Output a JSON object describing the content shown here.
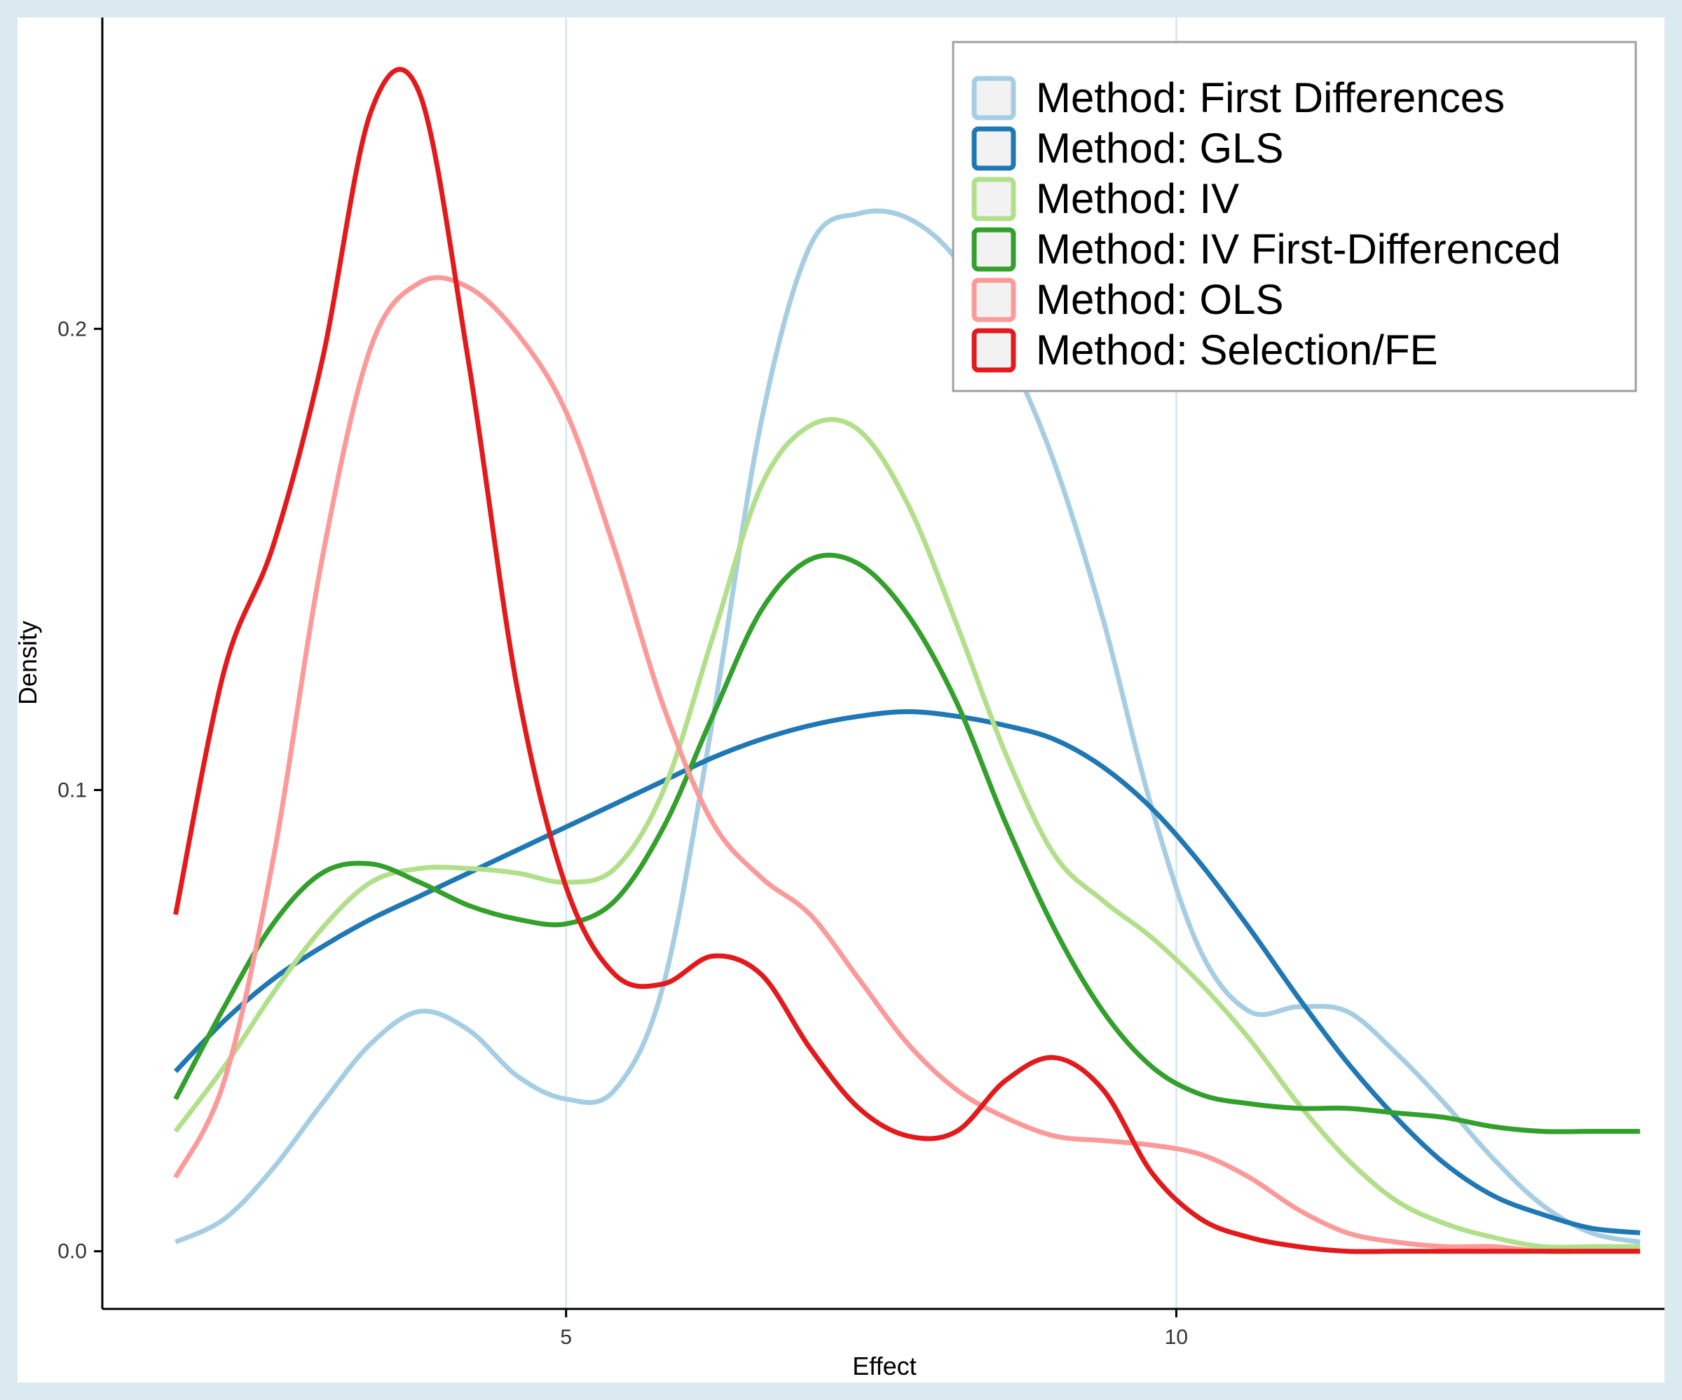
{
  "chart_data": {
    "type": "line",
    "title": "",
    "xlabel": "Effect",
    "ylabel": "Density",
    "xlim": [
      1.2,
      14.0
    ],
    "ylim": [
      -0.0125,
      0.2675
    ],
    "x_ticks": [
      5,
      10
    ],
    "x_tick_labels": [
      "5",
      "10"
    ],
    "y_ticks": [
      0.0,
      0.1,
      0.2
    ],
    "y_tick_labels": [
      "0.0",
      "0.1",
      "0.2"
    ],
    "grid": "vertical major gridlines at x ticks",
    "legend_position": "top-right",
    "x": [
      1.8,
      2.2,
      2.6,
      3.0,
      3.4,
      3.8,
      4.2,
      4.6,
      5.0,
      5.4,
      5.8,
      6.2,
      6.6,
      7.0,
      7.4,
      7.8,
      8.2,
      8.6,
      9.0,
      9.4,
      9.8,
      10.2,
      10.6,
      11.0,
      11.4,
      11.8,
      12.2,
      12.6,
      13.0,
      13.4,
      13.8,
      14.0
    ],
    "series": [
      {
        "name": "Method: First Differences",
        "color": "#a6cee3",
        "values": [
          0.002,
          0.007,
          0.018,
          0.032,
          0.045,
          0.052,
          0.048,
          0.038,
          0.033,
          0.035,
          0.058,
          0.115,
          0.18,
          0.218,
          0.225,
          0.224,
          0.215,
          0.196,
          0.171,
          0.137,
          0.096,
          0.065,
          0.052,
          0.053,
          0.052,
          0.043,
          0.032,
          0.02,
          0.01,
          0.004,
          0.002,
          0.001
        ]
      },
      {
        "name": "Method: GLS",
        "color": "#1f78b4",
        "values": [
          0.039,
          0.05,
          0.059,
          0.066,
          0.072,
          0.077,
          0.082,
          0.087,
          0.092,
          0.097,
          0.102,
          0.107,
          0.111,
          0.114,
          0.116,
          0.117,
          0.116,
          0.114,
          0.111,
          0.105,
          0.096,
          0.084,
          0.07,
          0.055,
          0.041,
          0.029,
          0.019,
          0.012,
          0.008,
          0.005,
          0.004,
          0.004
        ]
      },
      {
        "name": "Method: IV",
        "color": "#b2df8a",
        "values": [
          0.026,
          0.04,
          0.056,
          0.07,
          0.08,
          0.083,
          0.083,
          0.082,
          0.08,
          0.083,
          0.1,
          0.133,
          0.166,
          0.179,
          0.178,
          0.162,
          0.136,
          0.108,
          0.086,
          0.076,
          0.068,
          0.058,
          0.046,
          0.032,
          0.02,
          0.011,
          0.006,
          0.003,
          0.001,
          0.001,
          0.001,
          0.001
        ]
      },
      {
        "name": "Method: IV First-Differenced",
        "color": "#33a02c",
        "values": [
          0.033,
          0.053,
          0.071,
          0.082,
          0.084,
          0.08,
          0.075,
          0.072,
          0.071,
          0.076,
          0.092,
          0.116,
          0.139,
          0.15,
          0.149,
          0.138,
          0.119,
          0.093,
          0.07,
          0.052,
          0.04,
          0.034,
          0.032,
          0.031,
          0.031,
          0.03,
          0.029,
          0.027,
          0.026,
          0.026,
          0.026,
          0.026
        ]
      },
      {
        "name": "Method: OLS",
        "color": "#fb9a99",
        "values": [
          0.016,
          0.037,
          0.085,
          0.15,
          0.196,
          0.21,
          0.209,
          0.199,
          0.182,
          0.152,
          0.118,
          0.093,
          0.081,
          0.073,
          0.059,
          0.045,
          0.035,
          0.029,
          0.025,
          0.024,
          0.023,
          0.021,
          0.016,
          0.009,
          0.004,
          0.002,
          0.001,
          0.001,
          0.0,
          0.0,
          0.0,
          0.0
        ]
      },
      {
        "name": "Method: Selection/FE",
        "color": "#e31a1c",
        "values": [
          0.073,
          0.126,
          0.153,
          0.193,
          0.247,
          0.251,
          0.193,
          0.122,
          0.079,
          0.06,
          0.058,
          0.064,
          0.06,
          0.044,
          0.031,
          0.025,
          0.026,
          0.037,
          0.042,
          0.035,
          0.017,
          0.007,
          0.003,
          0.001,
          0.0,
          0.0,
          0.0,
          0.0,
          0.0,
          0.0,
          0.0,
          0.0
        ]
      }
    ]
  },
  "colors": {
    "page_background": "#dbe9f1",
    "panel_background": "#ffffff",
    "gridline": "#dbe9f1",
    "axis": "#000000",
    "legend_key_fill": "#f2f2f2",
    "legend_border": "#a0a0a0"
  }
}
